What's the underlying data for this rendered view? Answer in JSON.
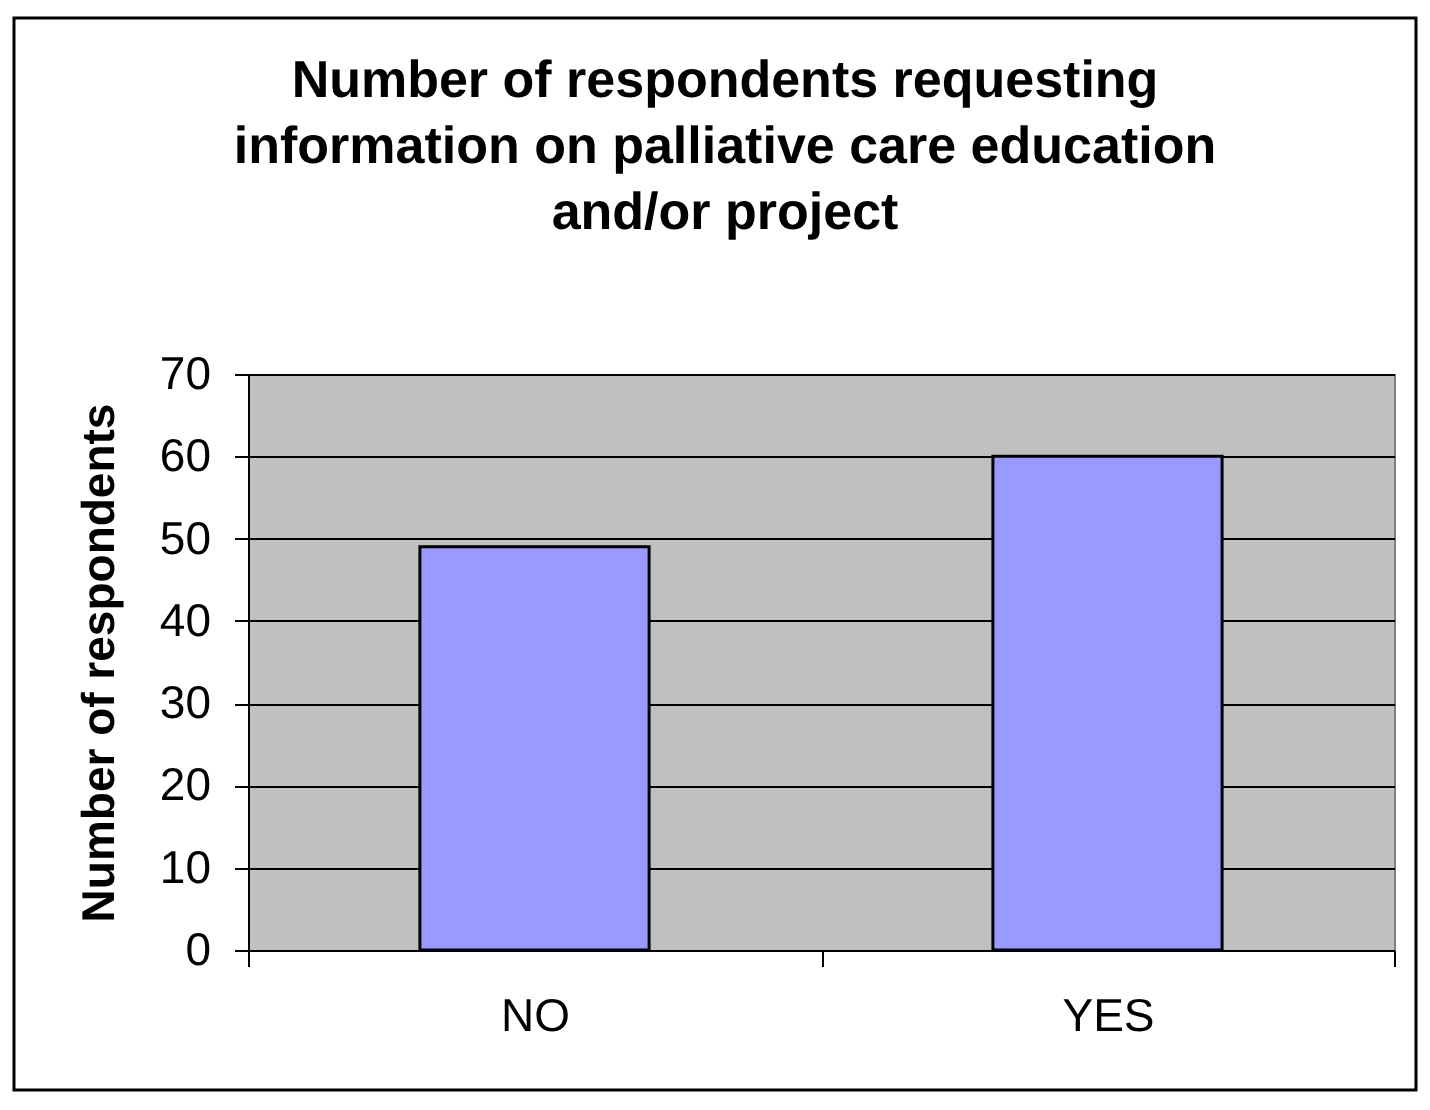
{
  "chart_data": {
    "type": "bar",
    "title": "Number of respondents requesting information on palliative care education and/or project",
    "ylabel": "Number of respondents",
    "categories": [
      "NO",
      "YES"
    ],
    "values": [
      49,
      60
    ],
    "color": "#9999ff",
    "ylim": [
      0,
      70
    ],
    "yticks": [
      0,
      10,
      20,
      30,
      40,
      50,
      60,
      70
    ],
    "grid": "y"
  }
}
